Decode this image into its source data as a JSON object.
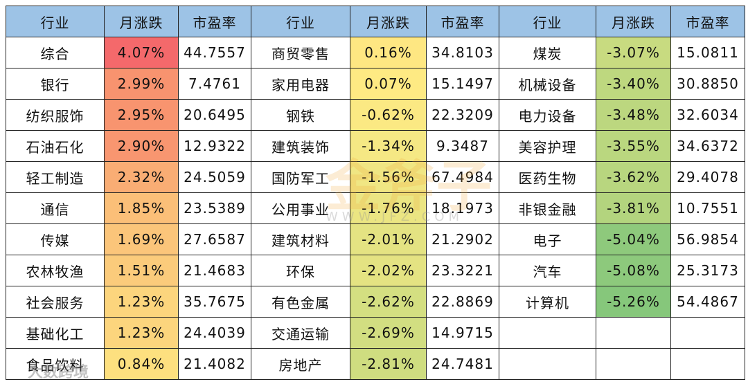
{
  "table": {
    "header": [
      "行业",
      "月涨跌",
      "市盈率"
    ],
    "header_color": "#9dc3e6",
    "groups": [
      {
        "rows": [
          [
            "综合",
            "4.07%",
            "44.7557"
          ],
          [
            "银行",
            "2.99%",
            "7.4761"
          ],
          [
            "纺织服饰",
            "2.95%",
            "20.6495"
          ],
          [
            "石油石化",
            "2.90%",
            "12.9322"
          ],
          [
            "轻工制造",
            "2.32%",
            "24.5059"
          ],
          [
            "通信",
            "1.85%",
            "23.5389"
          ],
          [
            "传媒",
            "1.69%",
            "27.6587"
          ],
          [
            "农林牧渔",
            "1.51%",
            "21.4683"
          ],
          [
            "社会服务",
            "1.23%",
            "35.7675"
          ],
          [
            "基础化工",
            "1.23%",
            "24.4039"
          ],
          [
            "食品饮料",
            "0.84%",
            "21.4082"
          ]
        ],
        "colors": [
          "#f4696b",
          "#f8936f",
          "#f8946f",
          "#f89670",
          "#f9ad74",
          "#fbbf78",
          "#fbc57a",
          "#fbcb7b",
          "#fcd57d",
          "#fcd57d",
          "#fde07f"
        ]
      },
      {
        "rows": [
          [
            "商贸零售",
            "0.16%",
            "34.8103"
          ],
          [
            "家用电器",
            "0.07%",
            "15.1497"
          ],
          [
            "钢铁",
            "-0.62%",
            "22.3209"
          ],
          [
            "建筑装饰",
            "-1.34%",
            "9.3487"
          ],
          [
            "国防军工",
            "-1.56%",
            "67.4984"
          ],
          [
            "公用事业",
            "-1.76%",
            "18.1973"
          ],
          [
            "建筑材料",
            "-2.01%",
            "21.2902"
          ],
          [
            "环保",
            "-2.02%",
            "23.3221"
          ],
          [
            "有色金属",
            "-2.62%",
            "22.8869"
          ],
          [
            "交通运输",
            "-2.69%",
            "14.9715"
          ],
          [
            "房地产",
            "-2.81%",
            "24.7481"
          ]
        ],
        "colors": [
          "#fee782",
          "#feea83",
          "#fbe983",
          "#f5e884",
          "#f0e683",
          "#ebe582",
          "#e4e382",
          "#e4e382",
          "#d4df81",
          "#d2de81",
          "#cfdd80"
        ]
      },
      {
        "rows": [
          [
            "煤炭",
            "-3.07%",
            "15.0811"
          ],
          [
            "机械设备",
            "-3.40%",
            "30.8850"
          ],
          [
            "电力设备",
            "-3.48%",
            "32.6034"
          ],
          [
            "美容护理",
            "-3.55%",
            "34.6372"
          ],
          [
            "医药生物",
            "-3.62%",
            "29.4078"
          ],
          [
            "非银金融",
            "-3.81%",
            "10.7551"
          ],
          [
            "电子",
            "-5.04%",
            "56.9854"
          ],
          [
            "汽车",
            "-5.08%",
            "25.3173"
          ],
          [
            "计算机",
            "-5.26%",
            "54.4867"
          ]
        ],
        "colors": [
          "#c8db80",
          "#bed87f",
          "#bcd77f",
          "#bad77f",
          "#b8d67f",
          "#b3d47e",
          "#8ec97c",
          "#8dc97c",
          "#86c77b"
        ]
      }
    ]
  },
  "watermarks": [
    "金斧子",
    "WWW.JFZ.COM",
    "大数跨境"
  ]
}
